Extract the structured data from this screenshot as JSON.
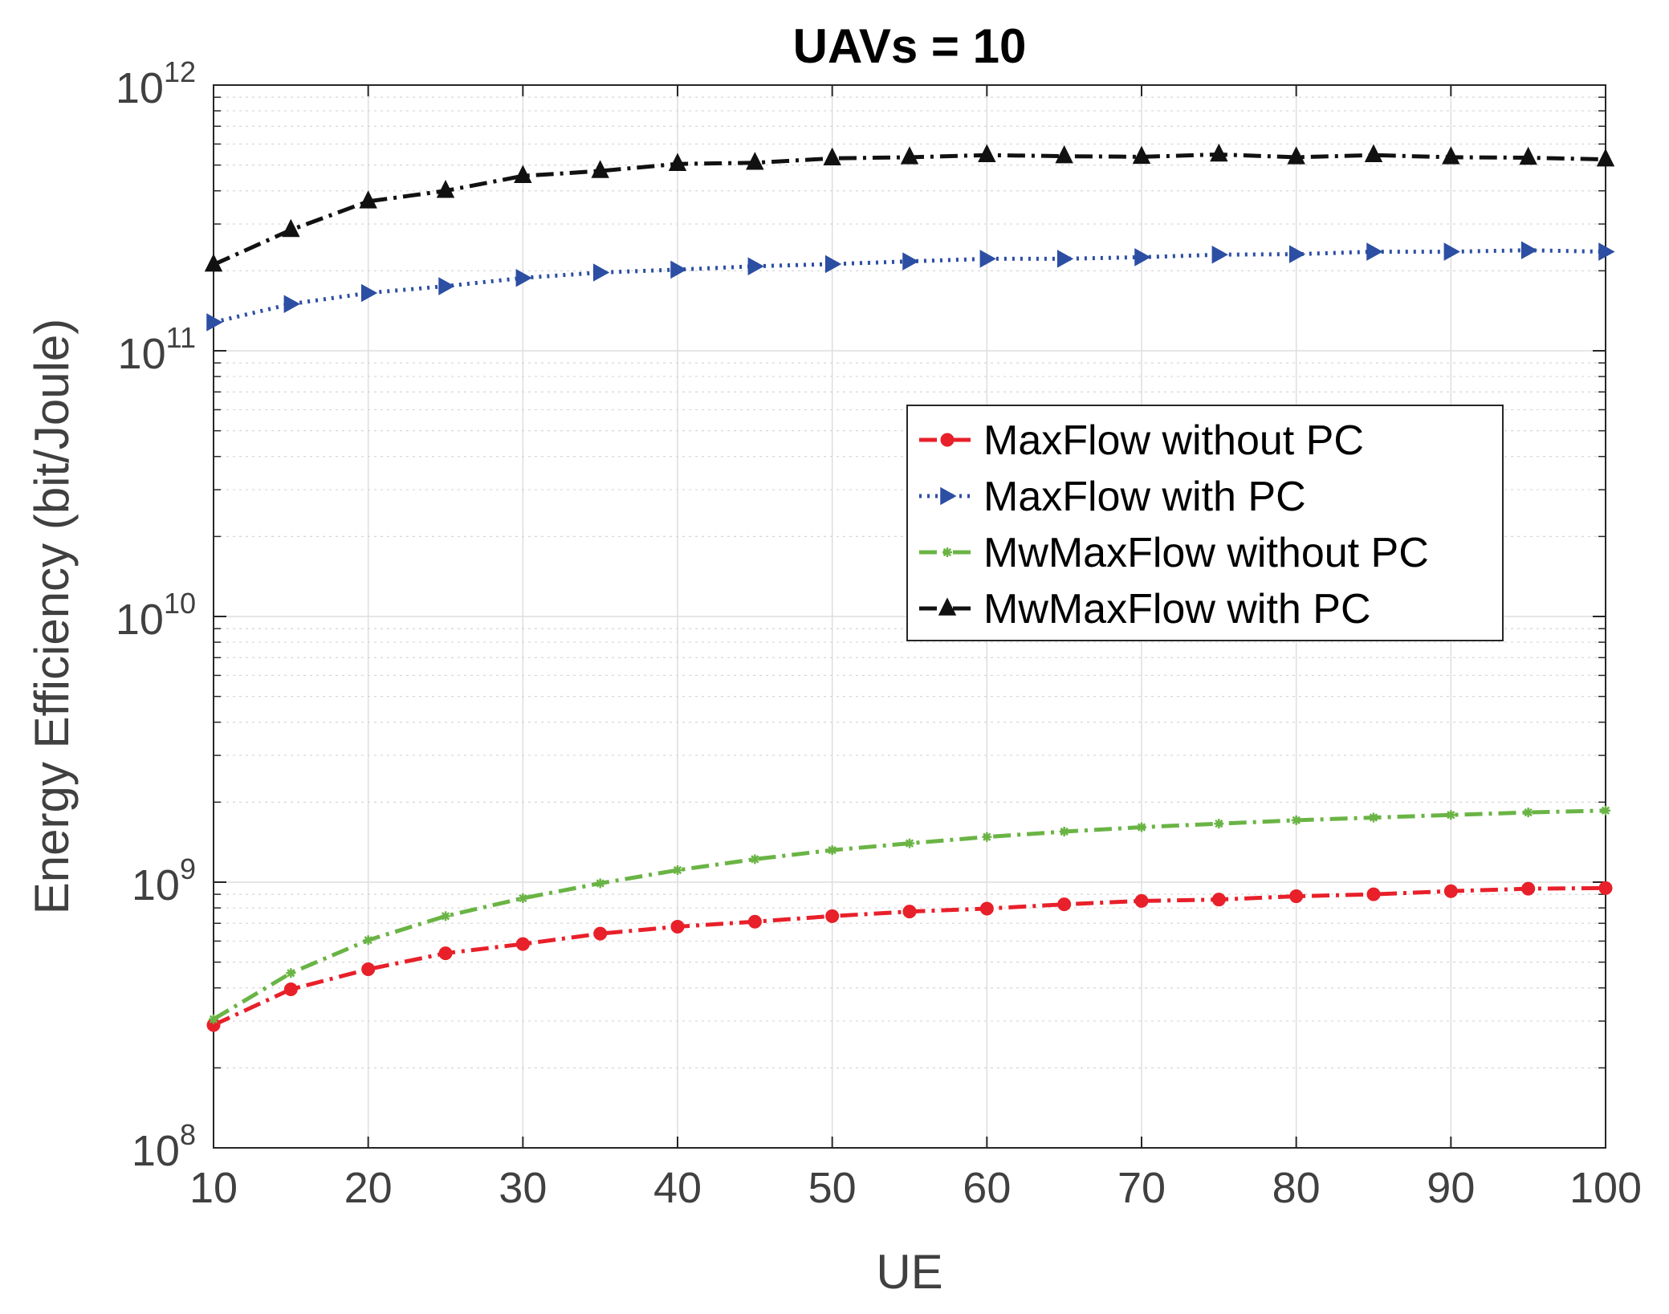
{
  "chart_data": {
    "type": "line",
    "title": "UAVs = 10",
    "xlabel": "UE",
    "ylabel": "Energy Efficiency (bit/Joule)",
    "yscale": "log",
    "xlim": [
      10,
      100
    ],
    "ylim": [
      100000000,
      1000000000000
    ],
    "grid": true,
    "legend_position": "center-right",
    "x": [
      10,
      15,
      20,
      25,
      30,
      35,
      40,
      45,
      50,
      55,
      60,
      65,
      70,
      75,
      80,
      85,
      90,
      95,
      100
    ],
    "xticks": [
      "10",
      "20",
      "30",
      "40",
      "50",
      "60",
      "70",
      "80",
      "90",
      "100"
    ],
    "yticks": [
      {
        "base": "10",
        "exp": "8"
      },
      {
        "base": "10",
        "exp": "9"
      },
      {
        "base": "10",
        "exp": "10"
      },
      {
        "base": "10",
        "exp": "11"
      },
      {
        "base": "10",
        "exp": "12"
      }
    ],
    "series": [
      {
        "name": "MaxFlow without PC",
        "color": "#e8202a",
        "line_style": "dash-dot",
        "marker": "circle",
        "values": [
          290000000,
          395000000,
          470000000,
          540000000,
          585000000,
          640000000,
          680000000,
          710000000,
          745000000,
          775000000,
          795000000,
          825000000,
          850000000,
          860000000,
          885000000,
          900000000,
          925000000,
          945000000,
          950000000
        ]
      },
      {
        "name": "MaxFlow with PC",
        "color": "#2c4ea3",
        "line_style": "dotted",
        "marker": "triangle-right",
        "values": [
          128000000000,
          150000000000,
          165000000000,
          175000000000,
          188000000000,
          197000000000,
          202000000000,
          208000000000,
          212000000000,
          217000000000,
          222000000000,
          222000000000,
          225000000000,
          230000000000,
          231000000000,
          236000000000,
          236000000000,
          239000000000,
          236000000000
        ]
      },
      {
        "name": "MwMaxFlow without PC",
        "color": "#6ab445",
        "line_style": "dash-dot",
        "marker": "asterisk",
        "values": [
          305000000,
          455000000,
          605000000,
          745000000,
          870000000,
          990000000,
          1110000000,
          1220000000,
          1320000000,
          1400000000,
          1480000000,
          1550000000,
          1610000000,
          1660000000,
          1710000000,
          1750000000,
          1790000000,
          1830000000,
          1860000000
        ]
      },
      {
        "name": "MwMaxFlow with PC",
        "color": "#111111",
        "line_style": "dash-dot",
        "marker": "triangle-up",
        "values": [
          211000000000,
          285000000000,
          365000000000,
          400000000000,
          455000000000,
          475000000000,
          505000000000,
          510000000000,
          530000000000,
          535000000000,
          545000000000,
          540000000000,
          537000000000,
          548000000000,
          535000000000,
          545000000000,
          535000000000,
          533000000000,
          525000000000
        ]
      }
    ]
  }
}
